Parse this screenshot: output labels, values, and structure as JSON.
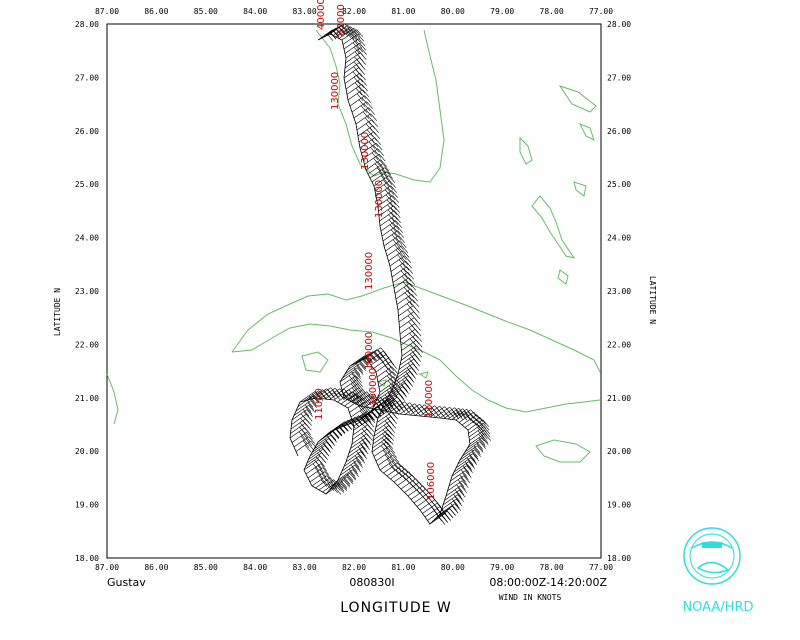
{
  "map": {
    "lon_ticks": [
      "87.00",
      "86.00",
      "85.00",
      "84.00",
      "83.00",
      "82.00",
      "81.00",
      "80.00",
      "79.00",
      "78.00",
      "77.00"
    ],
    "lat_ticks": [
      "28.00",
      "27.00",
      "26.00",
      "25.00",
      "24.00",
      "23.00",
      "22.00",
      "21.00",
      "20.00",
      "19.00",
      "18.00"
    ],
    "lon_range": [
      -87,
      -77
    ],
    "lat_range": [
      18,
      28
    ],
    "left_axis_label": "LATITUDE   N",
    "right_axis_label": "LATITUDE   N",
    "x_axis_label": "LONGITUDE   W",
    "storm_name": "Gustav",
    "date_code": "080830I",
    "time_range": "08:00:00Z-14:20:00Z",
    "wind_units": "WIND IN KNOTS",
    "agency": "NOAA/HRD",
    "coast_color": "#66bb66",
    "track_color": "#000000",
    "label_color": "#cc0000",
    "altitude_tags": [
      "40000",
      "82000",
      "130000",
      "130000",
      "130000",
      "130000",
      "11000",
      "160000",
      "160000",
      "110000",
      "106000"
    ]
  }
}
